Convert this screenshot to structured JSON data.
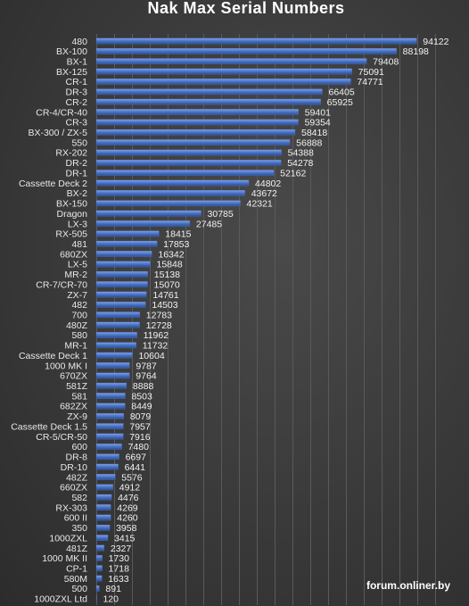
{
  "chart_data": {
    "type": "hbar",
    "title": "Nak Max Serial Numbers",
    "categories": [
      "480",
      "BX-100",
      "BX-1",
      "BX-125",
      "CR-1",
      "DR-3",
      "CR-2",
      "CR-4/CR-40",
      "CR-3",
      "BX-300 / ZX-5",
      "550",
      "RX-202",
      "DR-2",
      "DR-1",
      "Cassette Deck 2",
      "BX-2",
      "BX-150",
      "Dragon",
      "LX-3",
      "RX-505",
      "481",
      "680ZX",
      "LX-5",
      "MR-2",
      "CR-7/CR-70",
      "ZX-7",
      "482",
      "700",
      "480Z",
      "580",
      "MR-1",
      "Cassette Deck 1",
      "1000 MK I",
      "670ZX",
      "581Z",
      "581",
      "682ZX",
      "ZX-9",
      "Cassette Deck 1.5",
      "CR-5/CR-50",
      "600",
      "DR-8",
      "DR-10",
      "482Z",
      "660ZX",
      "582",
      "RX-303",
      "600 II",
      "350",
      "1000ZXL",
      "481Z",
      "1000 MK II",
      "CP-1",
      "580M",
      "500",
      "1000ZXL Ltd"
    ],
    "values": [
      94122,
      88198,
      79408,
      75091,
      74771,
      66405,
      65925,
      59401,
      59354,
      58418,
      56888,
      54388,
      54278,
      52162,
      44802,
      43672,
      42321,
      30785,
      27485,
      18415,
      17853,
      16342,
      15848,
      15138,
      15070,
      14761,
      14503,
      12783,
      12728,
      11962,
      11732,
      10604,
      9787,
      9764,
      8888,
      8503,
      8449,
      8079,
      7957,
      7916,
      7480,
      6697,
      6441,
      5576,
      4912,
      4476,
      4269,
      4260,
      3958,
      3415,
      2327,
      1730,
      1718,
      1633,
      891,
      120
    ],
    "color": "#4a72c4",
    "xlim": [
      0,
      104000
    ],
    "watermark": "forum.onliner.by"
  }
}
